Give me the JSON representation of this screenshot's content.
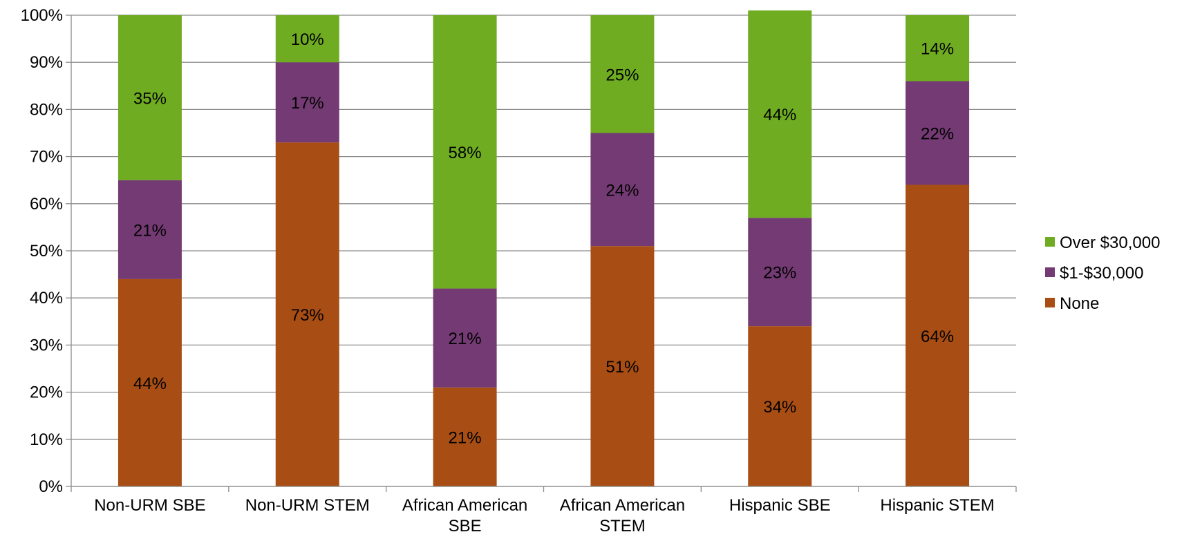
{
  "chart_data": {
    "type": "bar",
    "stacked": true,
    "percent_stacked": true,
    "categories": [
      [
        "Non-URM SBE"
      ],
      [
        "Non-URM STEM"
      ],
      [
        "African American",
        "SBE"
      ],
      [
        "African American",
        "STEM"
      ],
      [
        "Hispanic SBE"
      ],
      [
        "Hispanic STEM"
      ]
    ],
    "series": [
      {
        "name": "None",
        "color": "#A84E14",
        "values": [
          44,
          73,
          21,
          51,
          34,
          64
        ],
        "labels": [
          "44%",
          "73%",
          "21%",
          "51%",
          "34%",
          "64%"
        ]
      },
      {
        "name": "$1-$30,000",
        "color": "#733A73",
        "values": [
          21,
          17,
          21,
          24,
          23,
          22
        ],
        "labels": [
          "21%",
          "17%",
          "21%",
          "24%",
          "23%",
          "22%"
        ]
      },
      {
        "name": "Over $30,000",
        "color": "#6FAC22",
        "values": [
          35,
          10,
          58,
          25,
          44,
          14
        ],
        "labels": [
          "35%",
          "10%",
          "58%",
          "25%",
          "44%",
          "14%"
        ]
      }
    ],
    "ylim": [
      0,
      100
    ],
    "yticks": [
      0,
      10,
      20,
      30,
      40,
      50,
      60,
      70,
      80,
      90,
      100
    ],
    "ytick_labels": [
      "0%",
      "10%",
      "20%",
      "30%",
      "40%",
      "50%",
      "60%",
      "70%",
      "80%",
      "90%",
      "100%"
    ],
    "grid": true,
    "gridline_color": "#8C8C8C",
    "legend_position": "right",
    "legend_order": [
      "Over $30,000",
      "$1-$30,000",
      "None"
    ],
    "title": "",
    "xlabel": "",
    "ylabel": ""
  }
}
